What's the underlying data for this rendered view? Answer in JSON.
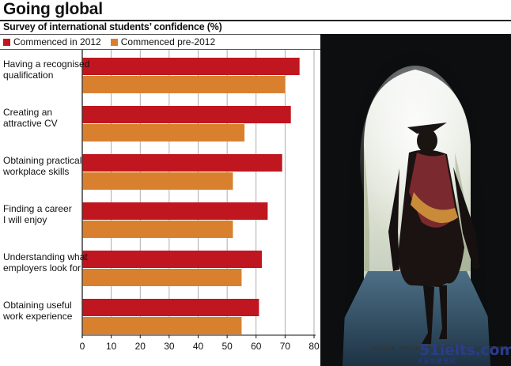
{
  "header": {
    "title": "Going global",
    "subtitle": "Survey of international students’ confidence (%)"
  },
  "legend": {
    "items": [
      {
        "label": "Commenced in 2012",
        "color": "#c0161f"
      },
      {
        "label": "Commenced pre-2012",
        "color": "#d9802f"
      }
    ]
  },
  "chart_data": {
    "type": "bar",
    "orientation": "horizontal",
    "categories": [
      [
        "Having a recognised",
        "qualification"
      ],
      [
        "Creating an",
        "attractive CV"
      ],
      [
        "Obtaining practical",
        "workplace skills"
      ],
      [
        "Finding a career",
        "I will enjoy"
      ],
      [
        "Understanding what",
        "employers look for"
      ],
      [
        "Obtaining useful",
        "work experience"
      ]
    ],
    "series": [
      {
        "name": "Commenced in 2012",
        "color": "#c0161f",
        "values": [
          75,
          72,
          69,
          64,
          62,
          61
        ]
      },
      {
        "name": "Commenced pre-2012",
        "color": "#d9802f",
        "values": [
          70,
          56,
          52,
          52,
          55,
          55
        ]
      }
    ],
    "x_ticks": [
      0,
      10,
      20,
      30,
      40,
      50,
      60,
      70,
      80
    ],
    "xlim": [
      0,
      80
    ],
    "grid": true,
    "title": "Going global",
    "subtitle": "Survey of international students’ confidence (%)",
    "xlabel": "",
    "ylabel": ""
  },
  "photo": {
    "description_icon": "graduate-silhouette-icon"
  },
  "footer": {
    "source": "SOURCE: PROSPECT RESEARCH & MARKETING",
    "watermark": "51ielts.com",
    "watermark_sub": "大家的雅思网"
  }
}
